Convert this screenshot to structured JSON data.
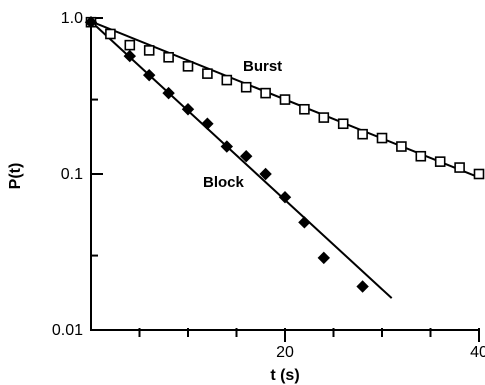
{
  "chart_data": {
    "type": "scatter",
    "xlabel": "t (s)",
    "ylabel": "P(t)",
    "xlim": [
      0,
      40
    ],
    "ylim": [
      0.01,
      1.0
    ],
    "y_scale": "log",
    "x_ticks_major": [
      20,
      40
    ],
    "x_ticks_minor": [
      5,
      10,
      15,
      25,
      30,
      35
    ],
    "x_tick_labels": [
      "20",
      "40"
    ],
    "y_ticks_major": [
      0.01,
      0.1,
      1.0
    ],
    "y_ticks_minor": [
      0.3,
      0.03
    ],
    "y_tick_labels": [
      "0.01",
      "0.1",
      "1.0"
    ],
    "annotations": {
      "burst": "Burst",
      "block": "Block"
    },
    "series": [
      {
        "name": "Burst",
        "marker": "open-square",
        "points": [
          [
            0,
            0.94
          ],
          [
            2,
            0.79
          ],
          [
            4,
            0.67
          ],
          [
            6,
            0.62
          ],
          [
            8,
            0.56
          ],
          [
            10,
            0.49
          ],
          [
            12,
            0.44
          ],
          [
            14,
            0.4
          ],
          [
            16,
            0.36
          ],
          [
            18,
            0.33
          ],
          [
            20,
            0.3
          ],
          [
            22,
            0.26
          ],
          [
            24,
            0.23
          ],
          [
            26,
            0.21
          ],
          [
            28,
            0.18
          ],
          [
            30,
            0.17
          ],
          [
            32,
            0.15
          ],
          [
            34,
            0.13
          ],
          [
            36,
            0.12
          ],
          [
            38,
            0.11
          ],
          [
            40,
            0.1
          ]
        ],
        "fit": [
          [
            0,
            0.95
          ],
          [
            40,
            0.095
          ]
        ]
      },
      {
        "name": "Block",
        "marker": "filled-diamond",
        "points": [
          [
            0,
            0.94
          ],
          [
            4,
            0.57
          ],
          [
            6,
            0.43
          ],
          [
            8,
            0.33
          ],
          [
            10,
            0.26
          ],
          [
            12,
            0.21
          ],
          [
            14,
            0.15
          ],
          [
            16,
            0.13
          ],
          [
            18,
            0.1
          ],
          [
            20,
            0.071
          ],
          [
            22,
            0.049
          ],
          [
            24,
            0.029
          ],
          [
            28,
            0.019
          ]
        ],
        "fit": [
          [
            0,
            0.95
          ],
          [
            31,
            0.016
          ]
        ]
      }
    ]
  }
}
